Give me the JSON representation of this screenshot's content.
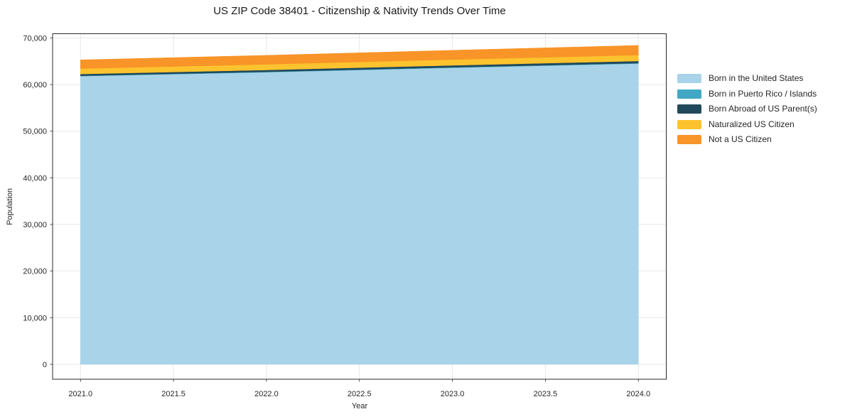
{
  "chart_data": {
    "type": "area",
    "stacked": true,
    "title": "US ZIP Code 38401 - Citizenship & Nativity Trends Over Time",
    "xlabel": "Year",
    "ylabel": "Population",
    "x": [
      2021,
      2022,
      2023,
      2024
    ],
    "series": [
      {
        "name": "Born in the United States",
        "color": "#a8d3e8",
        "values": [
          61800,
          62650,
          63600,
          64500
        ]
      },
      {
        "name": "Born in Puerto Rico / Islands",
        "color": "#41a7c4",
        "values": [
          80,
          85,
          90,
          100
        ]
      },
      {
        "name": "Born Abroad of US Parent(s)",
        "color": "#21495c",
        "values": [
          380,
          400,
          425,
          450
        ]
      },
      {
        "name": "Naturalized US Citizen",
        "color": "#fdc32e",
        "values": [
          1160,
          1200,
          1235,
          1270
        ]
      },
      {
        "name": "Not a US Citizen",
        "color": "#f89428",
        "values": [
          1880,
          1940,
          2000,
          2080
        ]
      }
    ],
    "xlim": [
      2020.85,
      2024.15
    ],
    "ylim": [
      -3200,
      70900
    ],
    "xticks": {
      "values": [
        2021,
        2021.5,
        2022,
        2022.5,
        2023,
        2023.5,
        2024
      ],
      "labels": [
        "2021.0",
        "2021.5",
        "2022.0",
        "2022.5",
        "2023.0",
        "2023.5",
        "2024.0"
      ]
    },
    "yticks": {
      "values": [
        0,
        10000,
        20000,
        30000,
        40000,
        50000,
        60000,
        70000
      ],
      "labels": [
        "0",
        "10,000",
        "20,000",
        "30,000",
        "40,000",
        "50,000",
        "60,000",
        "70,000"
      ]
    },
    "grid": true,
    "legend_position": "right-outside",
    "colors": {
      "grid": "#e7e7e7",
      "frame": "#2a2a2a",
      "text": "#262626",
      "background": "#ffffff"
    }
  }
}
